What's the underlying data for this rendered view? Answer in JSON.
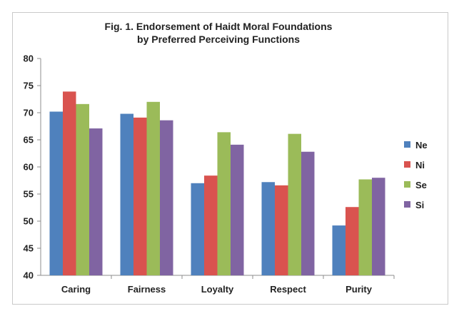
{
  "chart_data": {
    "type": "bar",
    "title_lines": [
      "Fig. 1. Endorsement of Haidt Moral Foundations",
      "by Preferred Perceiving Functions"
    ],
    "categories": [
      "Caring",
      "Fairness",
      "Loyalty",
      "Respect",
      "Purity"
    ],
    "series": [
      {
        "name": "Ne",
        "color": "#4f81bd",
        "values": [
          70.2,
          69.8,
          57.0,
          57.2,
          49.2
        ]
      },
      {
        "name": "Ni",
        "color": "#d9534f",
        "values": [
          73.9,
          69.1,
          58.4,
          56.6,
          52.6
        ]
      },
      {
        "name": "Se",
        "color": "#9bbb59",
        "values": [
          71.6,
          72.0,
          66.4,
          66.1,
          57.7
        ]
      },
      {
        "name": "Si",
        "color": "#8064a2",
        "values": [
          67.1,
          68.6,
          64.1,
          62.8,
          58.0
        ]
      }
    ],
    "ylim": [
      40,
      80
    ],
    "yticks": [
      40,
      45,
      50,
      55,
      60,
      65,
      70,
      75,
      80
    ],
    "grid": false,
    "legend_position": "right"
  }
}
